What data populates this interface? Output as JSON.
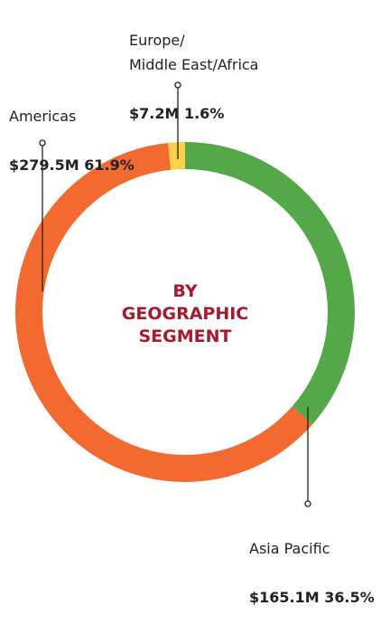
{
  "chart_data": {
    "type": "donut",
    "center_label": "BY\nGEOGRAPHIC\nSEGMENT",
    "categories": [
      "Asia Pacific",
      "Americas",
      "Europe/\nMiddle East/Africa"
    ],
    "values": [
      36.5,
      61.9,
      1.6
    ],
    "value_labels": [
      "$165.1M 36.5%",
      "$279.5M 61.9%",
      "$7.2M 1.6%"
    ],
    "colors": [
      "#55a84a",
      "#f26a30",
      "#fcd04a"
    ]
  }
}
